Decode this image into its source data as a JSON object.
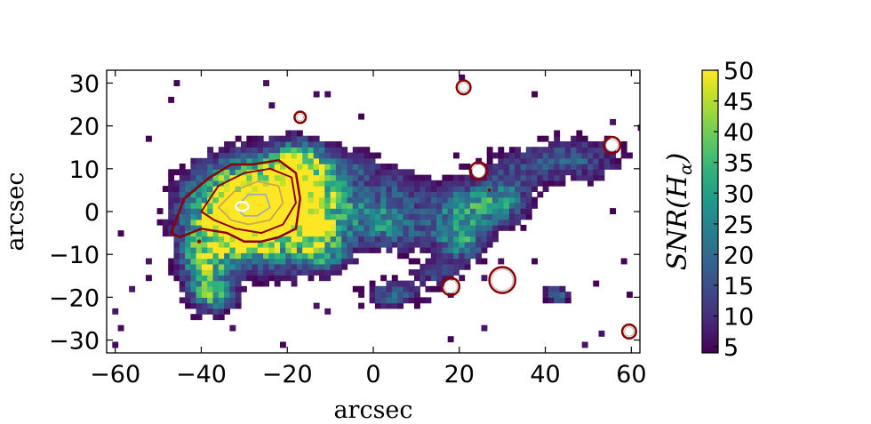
{
  "chart_data": {
    "type": "heatmap",
    "title": "",
    "xlabel": "arcsec",
    "ylabel": "arcsec",
    "xlim": [
      -62,
      62
    ],
    "ylim": [
      -33,
      33
    ],
    "xticks": [
      -60,
      -40,
      -20,
      0,
      20,
      40,
      60
    ],
    "yticks": [
      -30,
      -20,
      -10,
      0,
      10,
      20,
      30
    ],
    "xtick_labels": [
      "−60",
      "−40",
      "−20",
      "0",
      "20",
      "40",
      "60"
    ],
    "ytick_labels": [
      "−30",
      "−20",
      "−10",
      "0",
      "10",
      "20",
      "30"
    ],
    "colorbar": {
      "label": "SNR(Hα)",
      "label_display": "SNR(H",
      "label_sub": "α",
      "label_close": ")",
      "range": [
        4,
        50
      ],
      "ticks": [
        5,
        10,
        15,
        20,
        25,
        30,
        35,
        40,
        45,
        50
      ],
      "tick_labels": [
        "5",
        "10",
        "15",
        "20",
        "25",
        "30",
        "35",
        "40",
        "45",
        "50"
      ],
      "colormap": "viridis"
    },
    "contour_color": "#8b0000",
    "circle_sources": [
      {
        "x": 21,
        "y": 29,
        "r": 1.2
      },
      {
        "x": -17,
        "y": 22,
        "r": 0.9
      },
      {
        "x": 55.5,
        "y": 15.5,
        "r": 1.5
      },
      {
        "x": 24.5,
        "y": 9.5,
        "r": 1.6
      },
      {
        "x": 18,
        "y": -17.5,
        "r": 1.6
      },
      {
        "x": 30,
        "y": -16,
        "r": 2.6
      },
      {
        "x": 59.5,
        "y": -28,
        "r": 1.2
      }
    ]
  }
}
